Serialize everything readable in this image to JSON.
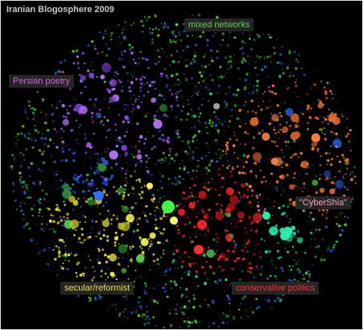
{
  "header": {
    "title": "Iranian Blogosphere 2009"
  },
  "clusters": [
    {
      "label": "mixed networks"
    },
    {
      "label": "Persian poetry"
    },
    {
      "label": "\"CyberShia\""
    },
    {
      "label": "secular/reformist"
    },
    {
      "label": "conservative politics"
    }
  ]
}
